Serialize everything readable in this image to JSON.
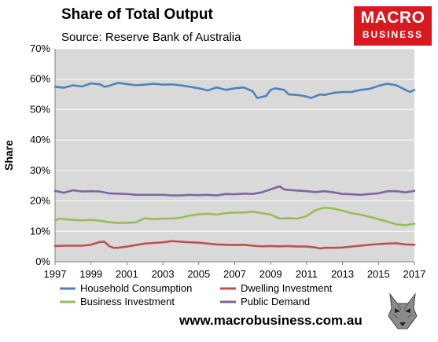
{
  "title": "Share of Total Output",
  "subtitle": "Source: Reserve Bank of Australia",
  "logo": {
    "line1": "MACRO",
    "line2": "BUSINESS",
    "color": "#d71920"
  },
  "website": "www.macrobusiness.com.au",
  "chart_data": {
    "type": "line",
    "ylabel": "Share",
    "xlabel": "",
    "ylim": [
      0,
      70
    ],
    "xlim": [
      1997,
      2017
    ],
    "y_ticks": [
      "0%",
      "10%",
      "20%",
      "30%",
      "40%",
      "50%",
      "60%",
      "70%"
    ],
    "x_ticks": [
      "1997",
      "1999",
      "2001",
      "2003",
      "2005",
      "2007",
      "2009",
      "2011",
      "2013",
      "2015",
      "2017"
    ],
    "grid": true,
    "legend": "bottom",
    "series": [
      {
        "name": "Household Consumption",
        "color": "#4f81bd",
        "points": [
          [
            1997,
            57.5
          ],
          [
            1997.5,
            57.2
          ],
          [
            1998,
            58
          ],
          [
            1998.5,
            57.6
          ],
          [
            1999,
            58.6
          ],
          [
            1999.5,
            58.3
          ],
          [
            1999.75,
            57.5
          ],
          [
            2000,
            57.8
          ],
          [
            2000.5,
            58.8
          ],
          [
            2001,
            58.4
          ],
          [
            2001.5,
            58
          ],
          [
            2002,
            58.2
          ],
          [
            2002.5,
            58.5
          ],
          [
            2003,
            58.2
          ],
          [
            2003.5,
            58.3
          ],
          [
            2004,
            58
          ],
          [
            2004.5,
            57.5
          ],
          [
            2005,
            57
          ],
          [
            2005.5,
            56.3
          ],
          [
            2006,
            57.3
          ],
          [
            2006.5,
            56.5
          ],
          [
            2007,
            57
          ],
          [
            2007.5,
            57.3
          ],
          [
            2008,
            56
          ],
          [
            2008.25,
            53.8
          ],
          [
            2008.75,
            54.5
          ],
          [
            2009,
            56.5
          ],
          [
            2009.25,
            57
          ],
          [
            2009.75,
            56.5
          ],
          [
            2010,
            55
          ],
          [
            2010.5,
            54.8
          ],
          [
            2011,
            54.3
          ],
          [
            2011.25,
            53.8
          ],
          [
            2011.75,
            55
          ],
          [
            2012,
            54.8
          ],
          [
            2012.5,
            55.5
          ],
          [
            2013,
            55.8
          ],
          [
            2013.5,
            55.8
          ],
          [
            2014,
            56.5
          ],
          [
            2014.5,
            56.8
          ],
          [
            2015,
            57.8
          ],
          [
            2015.5,
            58.5
          ],
          [
            2016,
            58
          ],
          [
            2016.5,
            56.5
          ],
          [
            2016.75,
            55.8
          ],
          [
            2017,
            56.5
          ]
        ]
      },
      {
        "name": "Dwelling Investment",
        "color": "#c0504d",
        "points": [
          [
            1997,
            5.2
          ],
          [
            1997.5,
            5.3
          ],
          [
            1998,
            5.3
          ],
          [
            1998.5,
            5.3
          ],
          [
            1999,
            5.6
          ],
          [
            1999.5,
            6.5
          ],
          [
            1999.75,
            6.6
          ],
          [
            2000,
            5.2
          ],
          [
            2000.25,
            4.6
          ],
          [
            2000.5,
            4.6
          ],
          [
            2001,
            5
          ],
          [
            2001.5,
            5.5
          ],
          [
            2002,
            6
          ],
          [
            2002.5,
            6.2
          ],
          [
            2003,
            6.4
          ],
          [
            2003.5,
            6.8
          ],
          [
            2004,
            6.6
          ],
          [
            2004.5,
            6.4
          ],
          [
            2005,
            6.3
          ],
          [
            2005.5,
            6
          ],
          [
            2006,
            5.7
          ],
          [
            2006.5,
            5.6
          ],
          [
            2007,
            5.5
          ],
          [
            2007.5,
            5.6
          ],
          [
            2008,
            5.3
          ],
          [
            2008.5,
            5.1
          ],
          [
            2009,
            5.2
          ],
          [
            2009.5,
            5.1
          ],
          [
            2010,
            5.2
          ],
          [
            2010.5,
            5
          ],
          [
            2011,
            5
          ],
          [
            2011.5,
            4.7
          ],
          [
            2011.75,
            4.4
          ],
          [
            2012,
            4.6
          ],
          [
            2012.5,
            4.6
          ],
          [
            2013,
            4.7
          ],
          [
            2013.5,
            5
          ],
          [
            2014,
            5.3
          ],
          [
            2014.5,
            5.6
          ],
          [
            2015,
            5.8
          ],
          [
            2015.5,
            6
          ],
          [
            2016,
            6.1
          ],
          [
            2016.5,
            5.7
          ],
          [
            2017,
            5.6
          ]
        ]
      },
      {
        "name": "Business Investment",
        "color": "#9bbb59",
        "points": [
          [
            1997,
            13.5
          ],
          [
            1997.25,
            14.2
          ],
          [
            1997.5,
            14
          ],
          [
            1998,
            13.8
          ],
          [
            1998.5,
            13.6
          ],
          [
            1999,
            13.8
          ],
          [
            1999.5,
            13.5
          ],
          [
            2000,
            13
          ],
          [
            2000.5,
            12.8
          ],
          [
            2001,
            12.8
          ],
          [
            2001.5,
            13
          ],
          [
            2002,
            14.3
          ],
          [
            2002.5,
            14
          ],
          [
            2003,
            14.2
          ],
          [
            2003.5,
            14.2
          ],
          [
            2004,
            14.5
          ],
          [
            2004.5,
            15.2
          ],
          [
            2005,
            15.6
          ],
          [
            2005.5,
            15.8
          ],
          [
            2006,
            15.5
          ],
          [
            2006.5,
            16
          ],
          [
            2007,
            16.2
          ],
          [
            2007.5,
            16.2
          ],
          [
            2008,
            16.5
          ],
          [
            2008.5,
            16
          ],
          [
            2009,
            15.5
          ],
          [
            2009.5,
            14.2
          ],
          [
            2010,
            14.3
          ],
          [
            2010.5,
            14.2
          ],
          [
            2011,
            15
          ],
          [
            2011.5,
            17
          ],
          [
            2012,
            17.8
          ],
          [
            2012.5,
            17.5
          ],
          [
            2013,
            16.8
          ],
          [
            2013.5,
            16
          ],
          [
            2014,
            15.5
          ],
          [
            2014.5,
            14.8
          ],
          [
            2015,
            14
          ],
          [
            2015.5,
            13.2
          ],
          [
            2016,
            12.3
          ],
          [
            2016.5,
            12
          ],
          [
            2017,
            12.5
          ]
        ]
      },
      {
        "name": "Public Demand",
        "color": "#8064a2",
        "points": [
          [
            1997,
            23.3
          ],
          [
            1997.5,
            22.7
          ],
          [
            1998,
            23.5
          ],
          [
            1998.5,
            23.1
          ],
          [
            1999,
            23.2
          ],
          [
            1999.5,
            23.1
          ],
          [
            2000,
            22.5
          ],
          [
            2000.5,
            22.4
          ],
          [
            2001,
            22.3
          ],
          [
            2001.5,
            22
          ],
          [
            2002,
            22
          ],
          [
            2002.5,
            22
          ],
          [
            2003,
            22
          ],
          [
            2003.5,
            21.8
          ],
          [
            2004,
            21.8
          ],
          [
            2004.5,
            22
          ],
          [
            2005,
            21.9
          ],
          [
            2005.5,
            22
          ],
          [
            2006,
            21.8
          ],
          [
            2006.5,
            22.3
          ],
          [
            2007,
            22.2
          ],
          [
            2007.5,
            22.4
          ],
          [
            2008,
            22.3
          ],
          [
            2008.5,
            22.8
          ],
          [
            2009,
            23.8
          ],
          [
            2009.5,
            24.8
          ],
          [
            2009.75,
            23.8
          ],
          [
            2010,
            23.6
          ],
          [
            2010.5,
            23.4
          ],
          [
            2011,
            23.2
          ],
          [
            2011.5,
            22.9
          ],
          [
            2012,
            23.2
          ],
          [
            2012.5,
            22.8
          ],
          [
            2013,
            22.3
          ],
          [
            2013.5,
            22.2
          ],
          [
            2014,
            22
          ],
          [
            2014.5,
            22.3
          ],
          [
            2015,
            22.5
          ],
          [
            2015.5,
            23.2
          ],
          [
            2016,
            23.2
          ],
          [
            2016.5,
            22.8
          ],
          [
            2017,
            23.3
          ]
        ]
      }
    ]
  }
}
